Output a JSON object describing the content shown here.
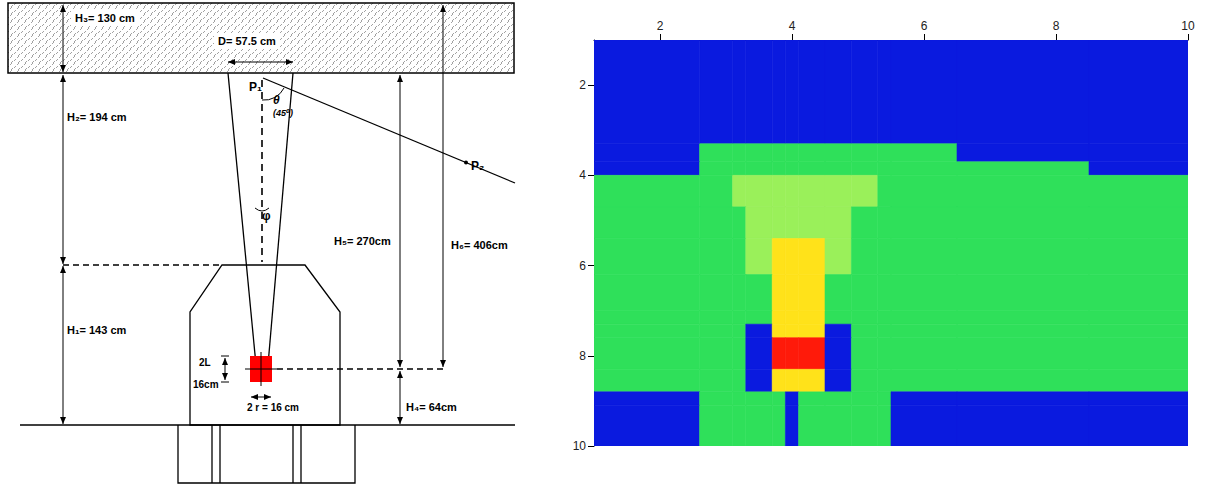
{
  "diagram": {
    "labels": {
      "H3": "H₃= 130 cm",
      "D": "D= 57.5 cm",
      "H2": "H₂= 194 cm",
      "H1": "H₁= 143 cm",
      "P1": "P₁",
      "theta": "θ",
      "angle": "(45⁰)",
      "phi": "φ",
      "P2": "P₂",
      "H5": "H₅= 270cm",
      "H6": "H₆= 406cm",
      "H4": "H₄= 64cm",
      "twoL": "2L",
      "sixteen": "16cm",
      "twoR": "2 r = 16 cm"
    }
  },
  "chart_data": {
    "type": "heatmap",
    "x_edges": [
      1,
      2.6,
      3.1,
      3.3,
      3.7,
      3.9,
      4.1,
      4.5,
      4.9,
      5.3,
      5.5,
      6.5,
      8.5,
      10
    ],
    "y_edges": [
      1,
      3.3,
      3.7,
      4.0,
      4.7,
      5.4,
      6.2,
      7.0,
      7.3,
      7.6,
      8.3,
      8.8,
      9.1,
      10
    ],
    "cells": [
      [
        0,
        0,
        0,
        0,
        0,
        0,
        0,
        0,
        0,
        0,
        0,
        0,
        0
      ],
      [
        0,
        1,
        1,
        1,
        1,
        1,
        1,
        1,
        1,
        1,
        1,
        0,
        0
      ],
      [
        0,
        1,
        1,
        1,
        1,
        1,
        1,
        1,
        1,
        1,
        1,
        1,
        0
      ],
      [
        1,
        1,
        2,
        2,
        2,
        2,
        2,
        2,
        2,
        1,
        1,
        1,
        1
      ],
      [
        1,
        1,
        1,
        2,
        2,
        2,
        2,
        2,
        1,
        1,
        1,
        1,
        1
      ],
      [
        1,
        1,
        1,
        2,
        3,
        3,
        3,
        2,
        1,
        1,
        1,
        1,
        1
      ],
      [
        1,
        1,
        1,
        1,
        3,
        3,
        3,
        1,
        1,
        1,
        1,
        1,
        1
      ],
      [
        1,
        1,
        1,
        1,
        3,
        3,
        3,
        1,
        1,
        1,
        1,
        1,
        1
      ],
      [
        1,
        1,
        1,
        0,
        3,
        3,
        3,
        0,
        1,
        1,
        1,
        1,
        1
      ],
      [
        1,
        1,
        1,
        0,
        4,
        4,
        4,
        0,
        1,
        1,
        1,
        1,
        1
      ],
      [
        1,
        1,
        1,
        0,
        3,
        3,
        3,
        0,
        1,
        1,
        1,
        1,
        1
      ],
      [
        0,
        1,
        1,
        1,
        1,
        0,
        1,
        1,
        1,
        1,
        0,
        0,
        0
      ],
      [
        0,
        1,
        1,
        1,
        1,
        0,
        1,
        1,
        1,
        1,
        0,
        0,
        0
      ]
    ],
    "colors": [
      "#0a1adf",
      "#2fe05a",
      "#9af05a",
      "#ffe21a",
      "#ff1a0a"
    ],
    "xlim": [
      1,
      10
    ],
    "ylim": [
      1,
      10
    ],
    "xticks": [
      2,
      4,
      6,
      8,
      10
    ],
    "yticks": [
      2,
      4,
      6,
      8,
      10
    ]
  }
}
